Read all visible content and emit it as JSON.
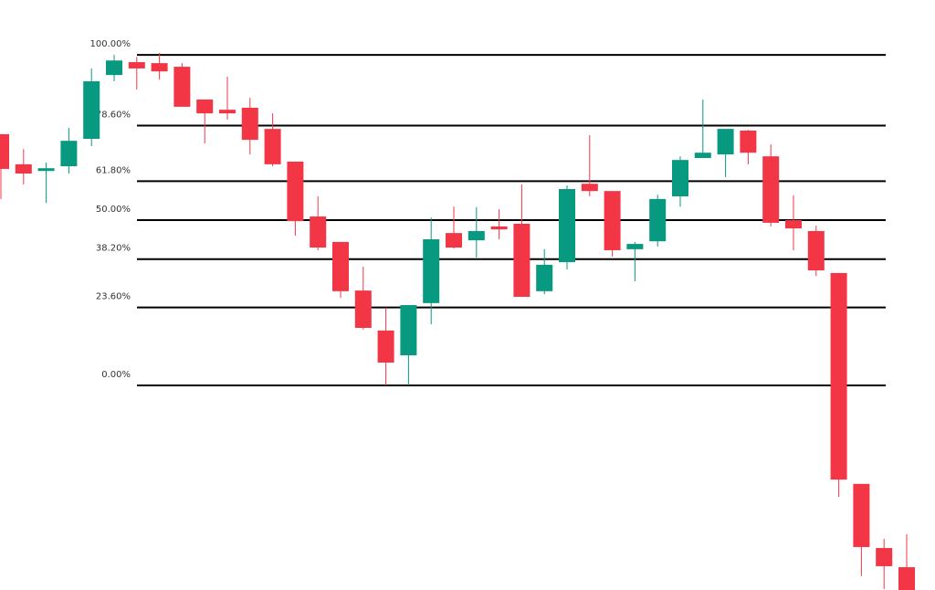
{
  "chart_data": {
    "type": "candlestick",
    "up_color": "#089981",
    "down_color": "#f23645",
    "ylim": [
      -61.9,
      116.6
    ],
    "yticks": [
      {
        "value": 100,
        "label": "100.00%"
      },
      {
        "value": 78.6,
        "label": "78.60%"
      },
      {
        "value": 61.8,
        "label": "61.80%"
      },
      {
        "value": 50,
        "label": "50.00%"
      },
      {
        "value": 38.2,
        "label": "38.20%"
      },
      {
        "value": 23.6,
        "label": "23.60%"
      },
      {
        "value": 0,
        "label": "0.00%"
      }
    ],
    "grid": true,
    "open": [
      76.0,
      66.9,
      64.9,
      66.3,
      74.6,
      93.9,
      97.8,
      97.5,
      96.4,
      86.5,
      83.4,
      84.0,
      77.6,
      67.7,
      51.1,
      43.4,
      28.7,
      16.6,
      9.1,
      24.9,
      46.1,
      43.9,
      48.1,
      48.9,
      28.5,
      37.3,
      61.0,
      58.8,
      41.2,
      43.6,
      57.2,
      68.8,
      69.9,
      77.1,
      69.3,
      50.0,
      46.7,
      34.0,
      -29.8,
      -49.2,
      -55.0
    ],
    "high": [
      76.0,
      71.5,
      67.4,
      77.9,
      95.9,
      100.0,
      99.4,
      100.6,
      97.5,
      86.5,
      93.4,
      87.0,
      82.3,
      67.7,
      57.2,
      43.4,
      35.9,
      23.5,
      24.3,
      50.8,
      54.1,
      53.9,
      53.3,
      60.8,
      41.2,
      60.5,
      75.7,
      58.8,
      43.4,
      57.7,
      69.3,
      86.5,
      77.6,
      77.3,
      72.9,
      57.5,
      48.3,
      34.0,
      -29.8,
      -46.4,
      -45.0
    ],
    "low": [
      56.4,
      60.8,
      55.2,
      64.1,
      72.4,
      92.0,
      89.5,
      92.5,
      84.3,
      73.2,
      80.4,
      69.9,
      66.3,
      45.3,
      40.9,
      26.5,
      16.9,
      0,
      0,
      18.5,
      41.4,
      38.7,
      44.2,
      26.8,
      27.6,
      35.1,
      57.2,
      39.0,
      31.5,
      42.0,
      54.1,
      68.8,
      63.0,
      66.9,
      48.1,
      40.9,
      33.1,
      -33.7,
      -57.7,
      -61.6,
      -61.9
    ],
    "close": [
      65.5,
      64.1,
      65.7,
      74.0,
      92.0,
      98.3,
      95.9,
      95.0,
      84.3,
      82.3,
      82.3,
      74.3,
      66.9,
      49.7,
      41.7,
      28.5,
      17.4,
      6.9,
      24.3,
      44.2,
      41.7,
      46.7,
      47.2,
      26.8,
      36.5,
      59.4,
      58.8,
      40.9,
      42.8,
      56.4,
      68.2,
      70.4,
      77.6,
      70.4,
      49.2,
      47.5,
      34.8,
      -28.5,
      -48.9,
      -54.7,
      -61.9
    ]
  }
}
